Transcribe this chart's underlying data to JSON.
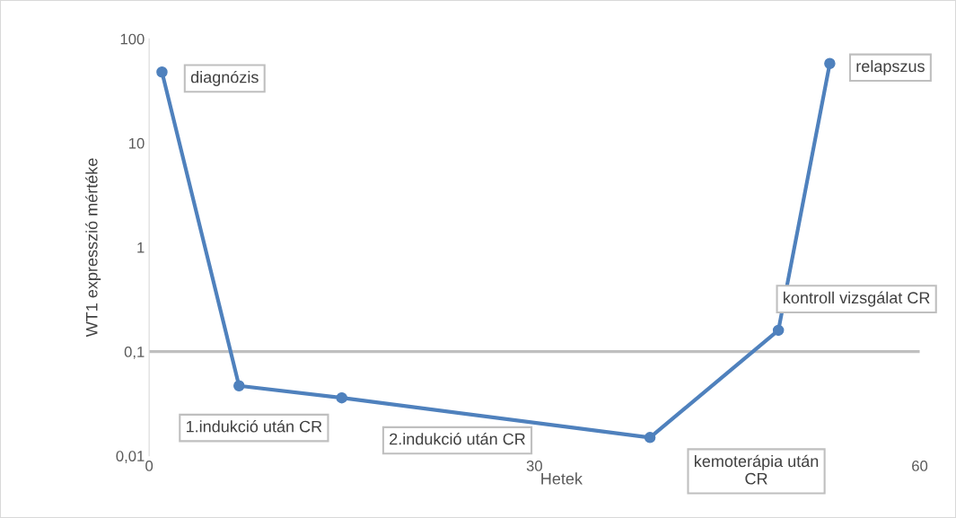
{
  "chart_data": {
    "type": "line",
    "xlabel": "Hetek",
    "ylabel": "WT1 expresszió mértéke",
    "x": [
      1,
      7,
      15,
      39,
      49,
      53
    ],
    "series": [
      {
        "color": "#4f81bd",
        "values": [
          48,
          0.047,
          0.036,
          0.015,
          0.16,
          58
        ]
      }
    ],
    "marker": "circle",
    "log": "y",
    "grid": false,
    "legend": false,
    "xlim": [
      0,
      60
    ],
    "xticks": [
      0,
      30,
      60
    ],
    "ylim": [
      0.01,
      100
    ],
    "yticks": [
      {
        "value": 0.01,
        "label": "0,01"
      },
      {
        "value": 0.1,
        "label": "0,1"
      },
      1,
      10,
      100
    ],
    "ref_lines": [
      {
        "axis": "y",
        "value": 0.1,
        "label": null,
        "color": "#bfbfbf"
      }
    ],
    "annotations": [
      "diagnózis",
      "1.indukció után CR",
      "2.indukció után CR",
      "kemoterápia után\nCR",
      "kontroll vizsgálat CR",
      "relapszus"
    ]
  }
}
